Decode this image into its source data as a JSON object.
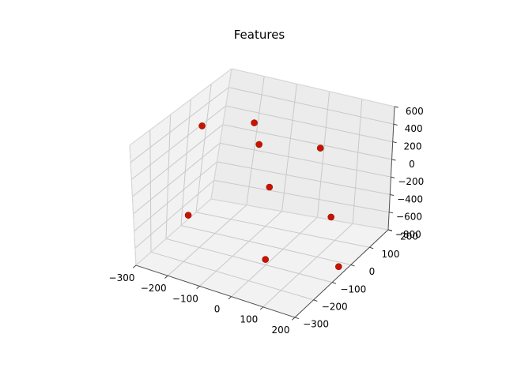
{
  "chart_data": {
    "type": "scatter",
    "title": "Features",
    "xlabel": "",
    "ylabel": "",
    "zlabel": "",
    "grid": true,
    "marker_color": "#cc1100",
    "xlim": [
      -300,
      200
    ],
    "ylim": [
      -300,
      200
    ],
    "zlim": [
      -800,
      600
    ],
    "x_ticks": [
      -300,
      -200,
      -100,
      0,
      100,
      200
    ],
    "y_ticks": [
      -300,
      -200,
      -100,
      0,
      100,
      200
    ],
    "z_ticks": [
      -800,
      -600,
      -400,
      -200,
      0,
      200,
      400,
      600
    ],
    "x_tick_labels": [
      "−300",
      "−200",
      "−100",
      "0",
      "100",
      "200"
    ],
    "y_tick_labels": [
      "−300",
      "−200",
      "−100",
      "0",
      "100",
      "200"
    ],
    "z_tick_labels": [
      "−800",
      "−600",
      "−400",
      "−200",
      "0",
      "200",
      "400",
      "600"
    ],
    "points": [
      {
        "x": -250,
        "y": -20,
        "z": 380
      },
      {
        "x": -150,
        "y": 80,
        "z": 330
      },
      {
        "x": -120,
        "y": 60,
        "z": 150
      },
      {
        "x": 30,
        "y": 120,
        "z": 130
      },
      {
        "x": -170,
        "y": -230,
        "z": -200
      },
      {
        "x": -40,
        "y": -20,
        "z": -120
      },
      {
        "x": 120,
        "y": 30,
        "z": -400
      },
      {
        "x": 50,
        "y": -200,
        "z": -520
      },
      {
        "x": 180,
        "y": -30,
        "z": -780
      }
    ]
  }
}
